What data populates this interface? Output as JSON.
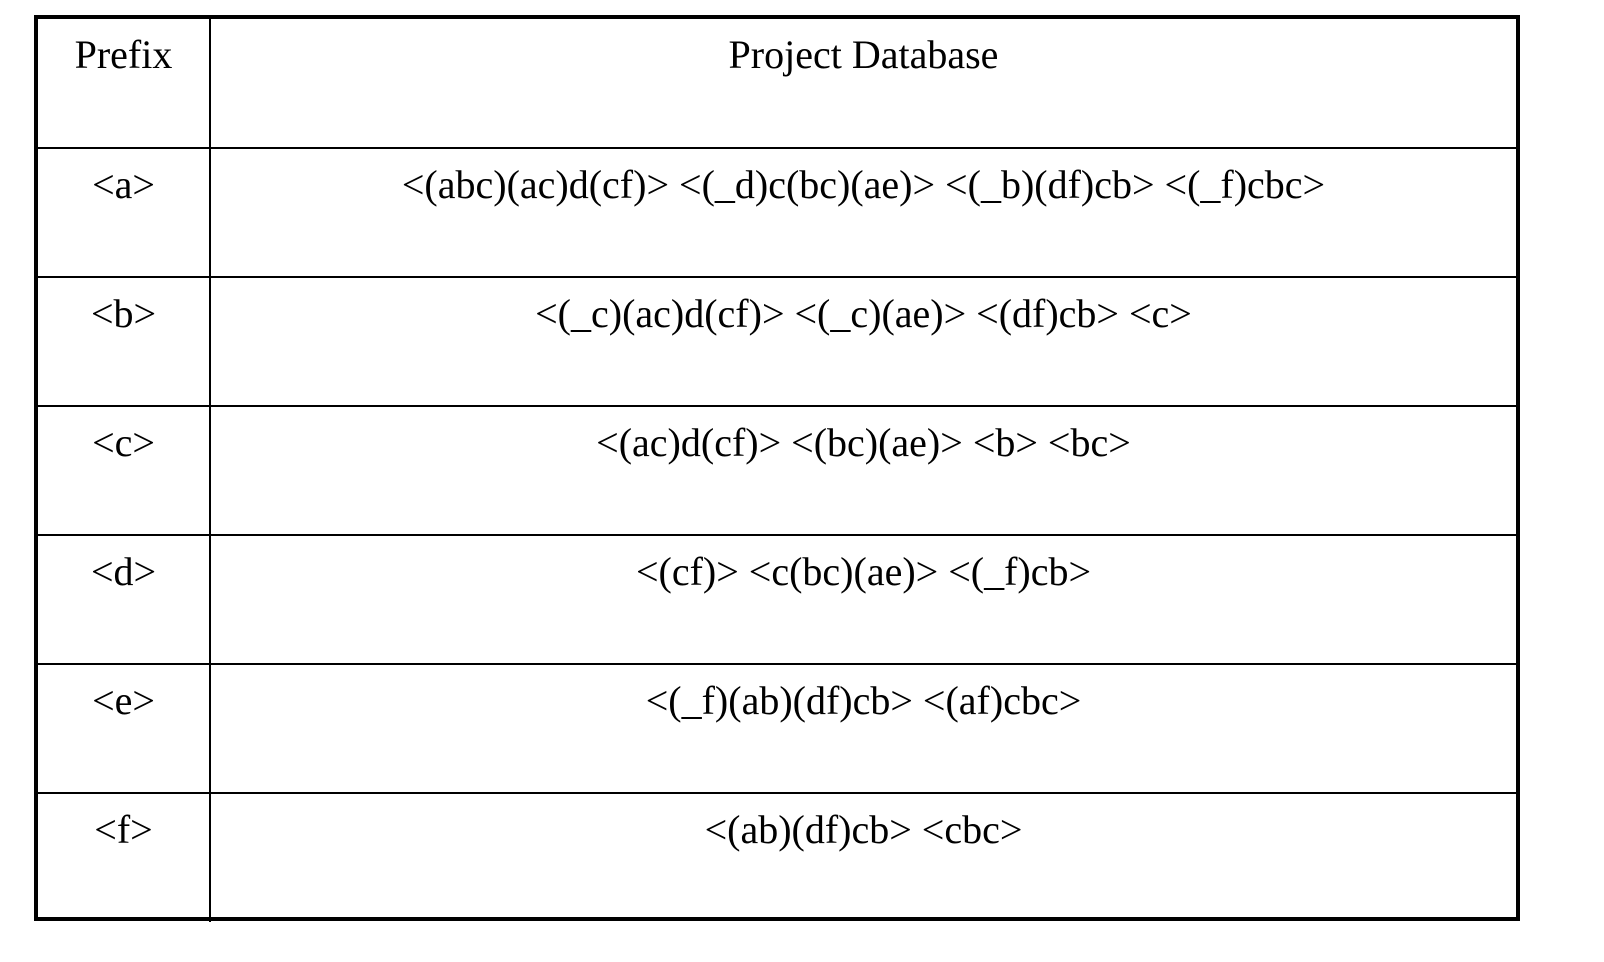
{
  "table": {
    "headers": {
      "prefix": "Prefix",
      "database": "Project Database"
    },
    "rows": [
      {
        "prefix": "<a>",
        "database": "<(abc)(ac)d(cf)> <(_d)c(bc)(ae)> <(_b)(df)cb> <(_f)cbc>"
      },
      {
        "prefix": "<b>",
        "database": "<(_c)(ac)d(cf)> <(_c)(ae)> <(df)cb> <c>"
      },
      {
        "prefix": "<c>",
        "database": "<(ac)d(cf)> <(bc)(ae)> <b> <bc>"
      },
      {
        "prefix": "<d>",
        "database": "<(cf)> <c(bc)(ae)> <(_f)cb>"
      },
      {
        "prefix": "<e>",
        "database": "<(_f)(ab)(df)cb> <(af)cbc>"
      },
      {
        "prefix": "<f>",
        "database": "<(ab)(df)cb> <cbc>"
      }
    ]
  }
}
